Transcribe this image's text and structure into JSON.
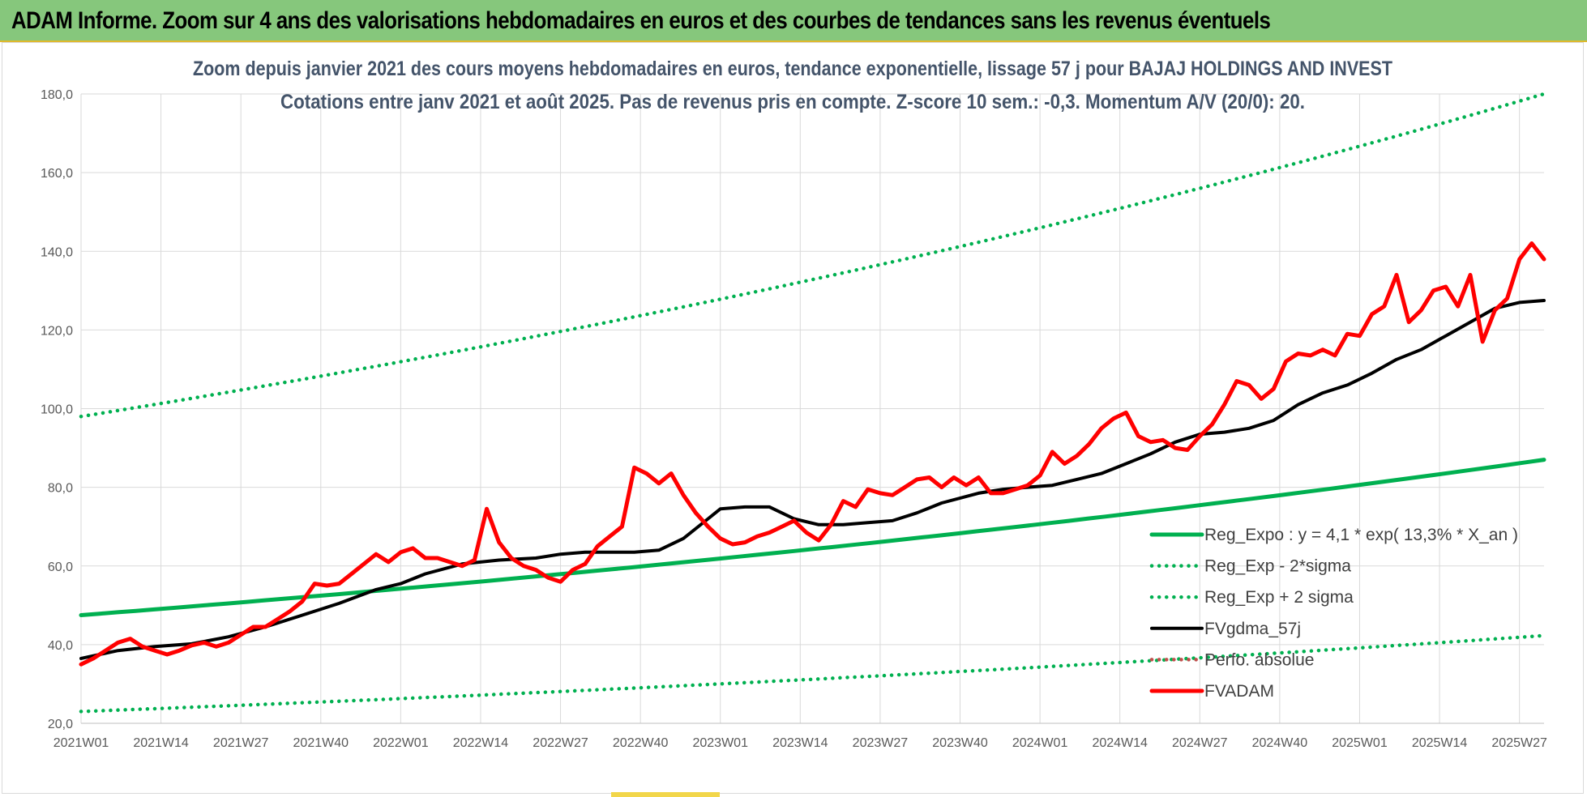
{
  "header": {
    "title": "ADAM Informe. Zoom sur 4 ans des valorisations hebdomadaires en euros et des courbes de tendances sans les revenus éventuels"
  },
  "colors": {
    "header_bg": "#86c77c",
    "trend": "#00b050",
    "fvgdma": "#000000",
    "fvadam": "#ff0000",
    "perfo": "#c0504d",
    "grid": "#d9d9d9"
  },
  "chart_data": {
    "type": "line",
    "title_lines": [
      "Zoom depuis janvier 2021 des cours moyens hebdomadaires en euros, tendance exponentielle, lissage 57 j pour BAJAJ HOLDINGS AND INVEST",
      "Cotations entre janv 2021 et août 2025.  Pas de revenus pris en compte. Z-score 10 sem.: -0,3. Momentum A/V (20/0): 20."
    ],
    "ylim": [
      20,
      180
    ],
    "y_ticks": [
      "20,0",
      "40,0",
      "60,0",
      "80,0",
      "100,0",
      "120,0",
      "140,0",
      "160,0",
      "180,0"
    ],
    "x_ticks": [
      "2021W01",
      "2021W14",
      "2021W27",
      "2021W40",
      "2022W01",
      "2022W14",
      "2022W27",
      "2022W40",
      "2023W01",
      "2023W14",
      "2023W27",
      "2023W40",
      "2024W01",
      "2024W14",
      "2024W27",
      "2024W40",
      "2025W01",
      "2025W14",
      "2025W27"
    ],
    "x_range_weeks": [
      0,
      238
    ],
    "grid": true,
    "legend_position": "bottom-right",
    "series": [
      {
        "name": "Reg_Expo : y = 4,1 * exp( 13,3% *  X_an )",
        "style": "solid-thick",
        "color": "#00b050",
        "x": [
          0,
          238
        ],
        "start": 47.5,
        "end": 87.0,
        "curve": "exponential"
      },
      {
        "name": "Reg_Exp - 2*sigma",
        "style": "dotted",
        "color": "#00b050",
        "x": [
          0,
          238
        ],
        "start": 23.0,
        "end": 42.3,
        "curve": "exponential"
      },
      {
        "name": "Reg_Exp + 2 sigma",
        "style": "dotted",
        "color": "#00b050",
        "x": [
          0,
          238
        ],
        "start": 98.0,
        "end": 180.0,
        "curve": "exponential"
      },
      {
        "name": "FVgdma_57j",
        "style": "solid",
        "color": "#000000",
        "x": [
          0,
          6,
          12,
          18,
          24,
          30,
          36,
          42,
          48,
          52,
          56,
          62,
          68,
          74,
          78,
          82,
          86,
          90,
          94,
          98,
          102,
          104,
          108,
          112,
          116,
          120,
          124,
          128,
          132,
          136,
          140,
          146,
          150,
          154,
          158,
          162,
          166,
          170,
          174,
          178,
          182,
          186,
          190,
          194,
          198,
          202,
          206,
          210,
          214,
          218,
          222,
          226,
          230,
          234,
          238
        ],
        "y": [
          36.5,
          38.5,
          39.5,
          40.2,
          42.0,
          44.5,
          47.5,
          50.5,
          54.0,
          55.5,
          58.0,
          60.5,
          61.5,
          62.0,
          63.0,
          63.5,
          63.5,
          63.5,
          64.0,
          67.0,
          72.0,
          74.5,
          75.0,
          75.0,
          72.0,
          70.5,
          70.5,
          71.0,
          71.5,
          73.5,
          76.0,
          78.5,
          79.5,
          80.0,
          80.5,
          82.0,
          83.5,
          86.0,
          88.5,
          91.5,
          93.5,
          94.0,
          95.0,
          97.0,
          101.0,
          104.0,
          106.0,
          109.0,
          112.5,
          115.0,
          118.5,
          122.0,
          125.5,
          127.0,
          127.5
        ]
      },
      {
        "name": "Perfo. absolue",
        "style": "dotted",
        "color": "#c0504d",
        "x": [],
        "y": []
      },
      {
        "name": "FVADAM",
        "style": "solid-thick",
        "color": "#ff0000",
        "x": [
          0,
          2,
          4,
          6,
          8,
          10,
          12,
          14,
          16,
          18,
          20,
          22,
          24,
          26,
          28,
          30,
          32,
          34,
          36,
          38,
          40,
          42,
          44,
          46,
          48,
          50,
          52,
          54,
          56,
          58,
          60,
          62,
          64,
          66,
          68,
          70,
          72,
          74,
          76,
          78,
          80,
          82,
          84,
          86,
          88,
          90,
          92,
          94,
          96,
          98,
          100,
          102,
          104,
          106,
          108,
          110,
          112,
          114,
          116,
          118,
          120,
          122,
          124,
          126,
          128,
          130,
          132,
          134,
          136,
          138,
          140,
          142,
          144,
          146,
          148,
          150,
          152,
          154,
          156,
          158,
          160,
          162,
          164,
          166,
          168,
          170,
          172,
          174,
          176,
          178,
          180,
          182,
          184,
          186,
          188,
          190,
          192,
          194,
          196,
          198,
          200,
          202,
          204,
          206,
          208,
          210,
          212,
          214,
          216,
          218,
          220,
          222,
          224,
          226,
          228,
          230,
          232,
          234,
          236,
          238
        ],
        "y": [
          35.0,
          36.5,
          38.5,
          40.5,
          41.5,
          39.5,
          38.5,
          37.5,
          38.5,
          39.8,
          40.5,
          39.5,
          40.5,
          42.5,
          44.5,
          44.5,
          46.5,
          48.5,
          51.0,
          55.5,
          55.0,
          55.5,
          58.0,
          60.5,
          63.0,
          61.0,
          63.5,
          64.5,
          62.0,
          62.0,
          61.0,
          60.0,
          61.5,
          74.5,
          66.0,
          62.0,
          60.0,
          59.0,
          57.0,
          56.0,
          59.0,
          60.5,
          65.0,
          67.5,
          70.0,
          85.0,
          83.5,
          81.0,
          83.5,
          78.0,
          73.5,
          70.0,
          67.0,
          65.5,
          66.0,
          67.5,
          68.5,
          70.0,
          71.5,
          68.5,
          66.5,
          70.5,
          76.5,
          75.0,
          79.5,
          78.5,
          78.0,
          80.0,
          82.0,
          82.5,
          80.0,
          82.5,
          80.5,
          82.5,
          78.5,
          78.5,
          79.5,
          80.5,
          83.0,
          89.0,
          86.0,
          88.0,
          91.0,
          95.0,
          97.5,
          99.0,
          93.0,
          91.5,
          92.0,
          90.0,
          89.5,
          93.0,
          96.0,
          101.0,
          107.0,
          106.0,
          102.5,
          105.0,
          112.0,
          114.0,
          113.5,
          115.0,
          113.5,
          119.0,
          118.5,
          124.0,
          126.0,
          134.0,
          122.0,
          125.0,
          130.0,
          131.0,
          126.0,
          134.0,
          117.0,
          125.0,
          128.0,
          138.0,
          142.0,
          138.0
        ]
      }
    ]
  }
}
